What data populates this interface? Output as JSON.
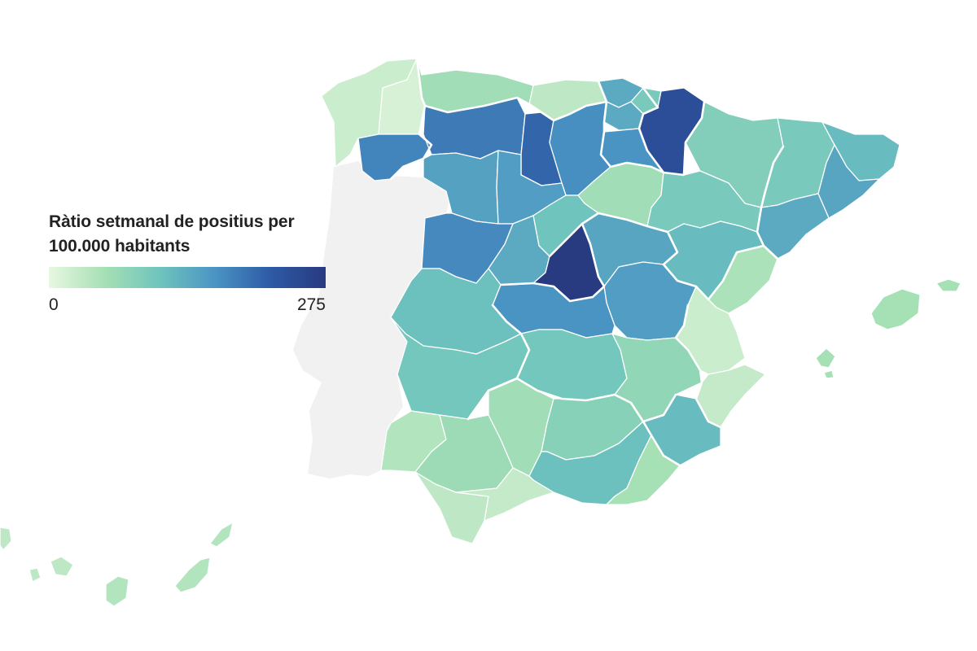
{
  "legend": {
    "title_line1": "Ràtio setmanal de positius per",
    "title_line2": "100.000 habitants",
    "min_label": "0",
    "max_label": "275",
    "min_value": 0,
    "max_value": 275
  },
  "colors": {
    "scale": [
      "#e8f7e1",
      "#a6e0b5",
      "#6fc4bd",
      "#4a94c4",
      "#2e5aa6",
      "#283a80"
    ],
    "portugal": "#f1f1f1",
    "border": "#ffffff"
  },
  "provinces": [
    {
      "name": "A Coruña",
      "value": 25
    },
    {
      "name": "Lugo",
      "value": 15
    },
    {
      "name": "Ourense",
      "value": 180
    },
    {
      "name": "Asturias",
      "value": 60
    },
    {
      "name": "Cantabria",
      "value": 35
    },
    {
      "name": "Bizkaia",
      "value": 140
    },
    {
      "name": "Gipuzkoa",
      "value": 100
    },
    {
      "name": "Araba",
      "value": 140
    },
    {
      "name": "Navarra",
      "value": 240
    },
    {
      "name": "La Rioja",
      "value": 165
    },
    {
      "name": "León",
      "value": 190
    },
    {
      "name": "Palencia",
      "value": 210
    },
    {
      "name": "Burgos",
      "value": 170
    },
    {
      "name": "Zamora",
      "value": 150
    },
    {
      "name": "Valladolid",
      "value": 155
    },
    {
      "name": "Soria",
      "value": 60
    },
    {
      "name": "Segovia",
      "value": 110
    },
    {
      "name": "Salamanca",
      "value": 175
    },
    {
      "name": "Ávila",
      "value": 140
    },
    {
      "name": "Madrid",
      "value": 275
    },
    {
      "name": "Guadalajara",
      "value": 145
    },
    {
      "name": "Huesca",
      "value": 90
    },
    {
      "name": "Lleida",
      "value": 100
    },
    {
      "name": "Girona",
      "value": 120
    },
    {
      "name": "Barcelona",
      "value": 145
    },
    {
      "name": "Zaragoza",
      "value": 100
    },
    {
      "name": "Teruel",
      "value": 120
    },
    {
      "name": "Tarragona",
      "value": 140
    },
    {
      "name": "Castelló",
      "value": 50
    },
    {
      "name": "Cuenca",
      "value": 155
    },
    {
      "name": "Toledo",
      "value": 165
    },
    {
      "name": "Cáceres",
      "value": 115
    },
    {
      "name": "Badajoz",
      "value": 105
    },
    {
      "name": "Ciudad Real",
      "value": 105
    },
    {
      "name": "Albacete",
      "value": 75
    },
    {
      "name": "València",
      "value": 25
    },
    {
      "name": "Alacant",
      "value": 30
    },
    {
      "name": "Murcia",
      "value": 120
    },
    {
      "name": "Huelva",
      "value": 45
    },
    {
      "name": "Sevilla",
      "value": 65
    },
    {
      "name": "Córdoba",
      "value": 60
    },
    {
      "name": "Jaén",
      "value": 85
    },
    {
      "name": "Granada",
      "value": 115
    },
    {
      "name": "Almería",
      "value": 55
    },
    {
      "name": "Cádiz",
      "value": 35
    },
    {
      "name": "Málaga",
      "value": 30
    },
    {
      "name": "Illes Balears",
      "value": 55
    },
    {
      "name": "Las Palmas",
      "value": 45
    },
    {
      "name": "Santa Cruz de Tenerife",
      "value": 35
    }
  ]
}
